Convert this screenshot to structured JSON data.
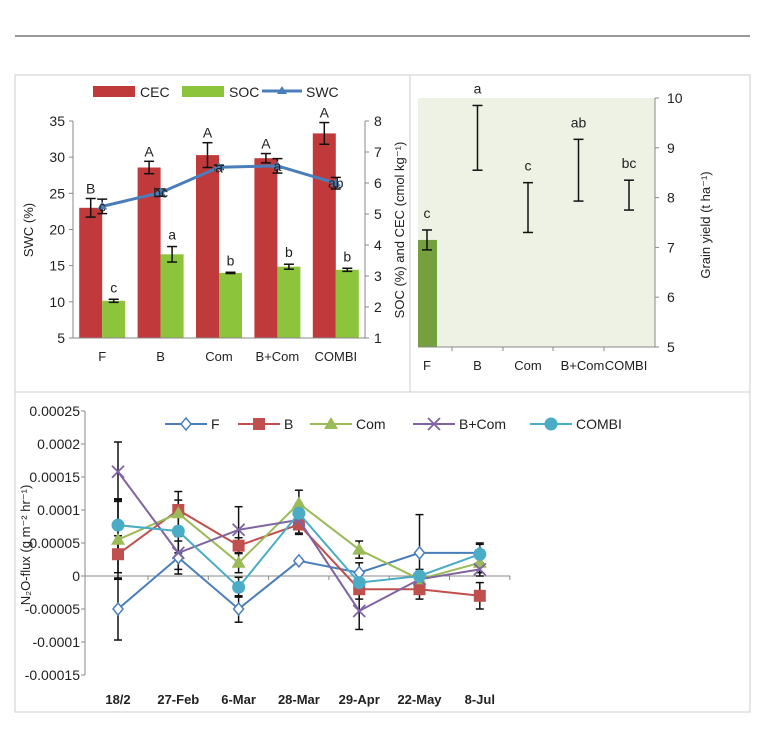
{
  "chart_data": [
    {
      "type": "bar",
      "categories": [
        "F",
        "B",
        "Com",
        "B+Com",
        "COMBI"
      ],
      "ylabel": "SWC (%)",
      "ylim": [
        5,
        35
      ],
      "yticks": [
        "5",
        "10",
        "15",
        "20",
        "25",
        "30",
        "35"
      ],
      "y2label": "SOC (%) and CEC (cmol kg⁻¹)",
      "y2lim": [
        1,
        8
      ],
      "y2ticks": [
        "1",
        "2",
        "3",
        "4",
        "5",
        "6",
        "7",
        "8"
      ],
      "legend_position": "top",
      "series": [
        {
          "name": "CEC",
          "type": "bar",
          "axis": "right",
          "color": "#c0393b",
          "values": [
            5.2,
            6.5,
            6.9,
            6.8,
            7.6
          ],
          "errors": [
            0.3,
            0.2,
            0.4,
            0.15,
            0.35
          ],
          "letters": [
            "B",
            "A",
            "A",
            "A",
            "A"
          ]
        },
        {
          "name": "SOC",
          "type": "bar",
          "axis": "right",
          "color": "#8cc43c",
          "values": [
            2.2,
            3.7,
            3.1,
            3.3,
            3.2
          ],
          "errors": [
            0.05,
            0.25,
            0.02,
            0.08,
            0.05
          ],
          "letters": [
            "c",
            "a",
            "b",
            "b",
            "b"
          ]
        },
        {
          "name": "SWC",
          "type": "line",
          "axis": "left",
          "color": "#4a7ebb",
          "values": [
            23.2,
            25.1,
            28.6,
            28.8,
            26.4
          ],
          "errors": [
            1.0,
            0.5,
            0.3,
            1.0,
            0.8
          ],
          "letters": [
            "c",
            "bc",
            "a",
            "a",
            "ab"
          ]
        }
      ]
    },
    {
      "type": "bar",
      "categories": [
        "F",
        "B",
        "Com",
        "B+Com",
        "COMBI"
      ],
      "ylabel": "Grain yield (t ha⁻¹)",
      "ylim": [
        5,
        10
      ],
      "yticks": [
        "5",
        "6",
        "7",
        "8",
        "9",
        "10"
      ],
      "background": "#eef2e4",
      "bar_color": "#76a03f",
      "values": [
        7.15,
        9.2,
        7.8,
        8.55,
        8.05
      ],
      "errors": [
        0.2,
        0.65,
        0.5,
        0.62,
        0.3
      ],
      "letters": [
        "c",
        "a",
        "c",
        "ab",
        "bc"
      ]
    },
    {
      "type": "line",
      "categories": [
        "18/2",
        "27-Feb",
        "6-Mar",
        "28-Mar",
        "29-Apr",
        "22-May",
        "8-Jul"
      ],
      "ylabel": "N₂O-flux (g m⁻² hr⁻¹)",
      "ylim": [
        -0.00015,
        0.00025
      ],
      "yticks": [
        "-0.00015",
        "-0.0001",
        "-0.00005",
        "0",
        "0.00005",
        "0.0001",
        "0.00015",
        "0.0002",
        "0.00025"
      ],
      "legend_position": "top",
      "series": [
        {
          "name": "F",
          "color": "#4a7ebb",
          "marker": "diamond-open",
          "values": [
            -5e-05,
            2.8e-05,
            -5e-05,
            2.3e-05,
            5e-06,
            3.5e-05,
            3.5e-05
          ],
          "errors": [
            4.7e-05,
            2.5e-05,
            2e-05,
            3e-06,
            1.5e-05,
            5.8e-05,
            1.5e-05
          ]
        },
        {
          "name": "B",
          "color": "#c0504d",
          "marker": "square",
          "values": [
            3.3e-05,
            0.0001,
            4.6e-05,
            7.8e-05,
            -2e-05,
            -2e-05,
            -3e-05
          ],
          "errors": [
            2.8e-05,
            2.8e-05,
            1.2e-05,
            1.5e-05,
            1.5e-05,
            1.5e-05,
            2e-05
          ]
        },
        {
          "name": "Com",
          "color": "#9bbb59",
          "marker": "triangle",
          "values": [
            5.5e-05,
            9.5e-05,
            2e-05,
            0.00011,
            4e-05,
            -5e-06,
            2e-05
          ],
          "errors": [
            6e-05,
            2e-05,
            1.5e-05,
            2e-05,
            1.3e-05,
            1e-05,
            1.5e-05
          ]
        },
        {
          "name": "B+Com",
          "color": "#8064a2",
          "marker": "x",
          "values": [
            0.000158,
            3.5e-05,
            7e-05,
            8.5e-05,
            -5.3e-05,
            -5e-06,
            1e-05
          ],
          "errors": [
            4.5e-05,
            2.5e-05,
            3.5e-05,
            2e-05,
            2.8e-05,
            1e-05,
            1e-05
          ]
        },
        {
          "name": "COMBI",
          "color": "#4bacc6",
          "marker": "circle",
          "values": [
            7.7e-05,
            6.8e-05,
            -1.7e-05,
            9.5e-05,
            -1e-05,
            0,
            3.3e-05
          ],
          "errors": [
            4e-05,
            3.3e-05,
            1.5e-05,
            1.5e-05,
            1.5e-05,
            1e-05,
            1.5e-05
          ]
        }
      ]
    }
  ]
}
